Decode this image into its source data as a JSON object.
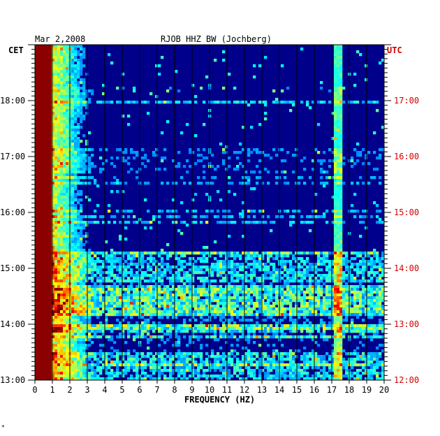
{
  "header": {
    "date": "Mar 2,2008",
    "station": "RJOB HHZ BW (Jochberg)",
    "left_tz": "CET",
    "right_tz": "UTC",
    "xlabel": "FREQUENCY (HZ)",
    "footnote": "*"
  },
  "colors": {
    "background": "#00008b",
    "low_band": "#8b0000",
    "grid": "#000000",
    "utc_text": "#d40000",
    "text": "#000000"
  },
  "chart_data": {
    "type": "heatmap",
    "title": "RJOB HHZ BW (Jochberg)",
    "subtitle": "Mar 2,2008",
    "xlabel": "FREQUENCY (HZ)",
    "x_range": [
      0,
      20
    ],
    "x_ticks": [
      "0",
      "1",
      "2",
      "3",
      "4",
      "5",
      "6",
      "7",
      "8",
      "9",
      "10",
      "11",
      "12",
      "13",
      "14",
      "15",
      "16",
      "17",
      "18",
      "19",
      "20"
    ],
    "y_left_label": "CET",
    "y_left_range": [
      "13:00",
      "19:00"
    ],
    "y_left_ticks": [
      "13:00",
      "14:00",
      "15:00",
      "16:00",
      "17:00",
      "18:00"
    ],
    "y_right_label": "UTC",
    "y_right_ticks": [
      "12:00",
      "13:00",
      "14:00",
      "15:00",
      "16:00",
      "17:00"
    ],
    "grid": true,
    "notes": "Spectrogram intensity; strongest energy below ~1 Hz (dark red), persistent line near 17.4 Hz, horizontal high-energy bands around 14:20-14:40 and 13:55 CET."
  }
}
